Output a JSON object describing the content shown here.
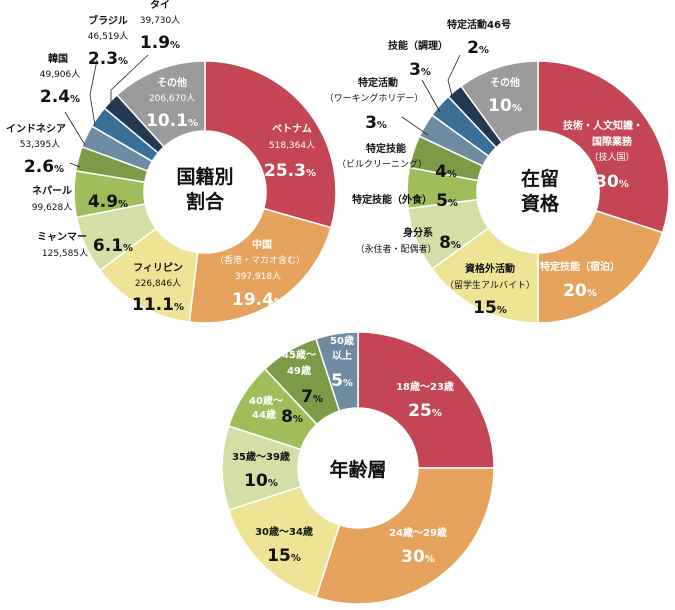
{
  "colors": {
    "red": "#c44654",
    "orange": "#e6a35d",
    "yellow": "#ede595",
    "lightgreen": "#d3dfa6",
    "green": "#9fbd5a",
    "darkgreen": "#7c9b47",
    "greyblue": "#6f8ba1",
    "blue": "#3b6f96",
    "navy": "#233950",
    "grey": "#9b9b9b"
  },
  "unit": "%",
  "chart_data": [
    {
      "type": "pie",
      "donut": true,
      "title": "国籍別割合",
      "title_lines": [
        "国籍別",
        "割合"
      ],
      "slices": [
        {
          "label": "ベトナム",
          "count": "518,364人",
          "value": 25.3,
          "color": "red"
        },
        {
          "label": "中国",
          "sublabel": "（香港・マカオ含む）",
          "count": "397,918人",
          "value": 19.4,
          "color": "orange"
        },
        {
          "label": "フィリピン",
          "count": "226,846人",
          "value": 11.1,
          "color": "yellow"
        },
        {
          "label": "ミャンマー",
          "count": "125,585人",
          "value": 6.1,
          "color": "lightgreen"
        },
        {
          "label": "ネパール",
          "count": "99,628人",
          "value": 4.9,
          "color": "green"
        },
        {
          "label": "インドネシア",
          "count": "53,395人",
          "value": 2.6,
          "color": "darkgreen"
        },
        {
          "label": "韓国",
          "count": "49,906人",
          "value": 2.4,
          "color": "greyblue"
        },
        {
          "label": "ブラジル",
          "count": "46,519人",
          "value": 2.3,
          "color": "blue"
        },
        {
          "label": "タイ",
          "count": "39,730人",
          "value": 1.9,
          "color": "navy"
        },
        {
          "label": "その他",
          "count": "206,670人",
          "value": 10.1,
          "color": "grey"
        }
      ]
    },
    {
      "type": "pie",
      "donut": true,
      "title": "在留資格",
      "title_lines": [
        "在留",
        "資格"
      ],
      "slices": [
        {
          "label": "技術・人文知識・",
          "label2": "国際業務",
          "sublabel": "（技人国）",
          "value": 30,
          "color": "red"
        },
        {
          "label": "特定技能（宿泊）",
          "value": 20,
          "color": "orange"
        },
        {
          "label": "資格外活動",
          "sublabel": "（留学生アルバイト）",
          "value": 15,
          "color": "yellow"
        },
        {
          "label": "身分系",
          "sublabel": "（永住者・配偶者）",
          "value": 8,
          "color": "lightgreen"
        },
        {
          "label": "特定技能（外食）",
          "value": 5,
          "color": "green"
        },
        {
          "label": "特定技能",
          "sublabel": "（ビルクリーニング）",
          "value": 4,
          "color": "darkgreen"
        },
        {
          "label": "特定活動",
          "sublabel": "（ワーキングホリデー）",
          "value": 3,
          "color": "greyblue"
        },
        {
          "label": "技能（調理）",
          "value": 3,
          "color": "blue"
        },
        {
          "label": "特定活動46号",
          "value": 2,
          "color": "navy"
        },
        {
          "label": "その他",
          "value": 10,
          "color": "grey"
        }
      ]
    },
    {
      "type": "pie",
      "donut": true,
      "title": "年齢層",
      "title_lines": [
        "年齢層"
      ],
      "slices": [
        {
          "label": "18歳〜23歳",
          "value": 25,
          "color": "red"
        },
        {
          "label": "24歳〜29歳",
          "value": 30,
          "color": "orange"
        },
        {
          "label": "30歳〜34歳",
          "value": 15,
          "color": "yellow"
        },
        {
          "label": "35歳〜39歳",
          "value": 10,
          "color": "lightgreen"
        },
        {
          "label": "40歳〜",
          "label2": "44歳",
          "value": 8,
          "color": "green"
        },
        {
          "label": "45歳〜",
          "label2": "49歳",
          "value": 7,
          "color": "darkgreen"
        },
        {
          "label": "50歳",
          "label2": "以上",
          "value": 5,
          "color": "greyblue"
        }
      ]
    }
  ]
}
